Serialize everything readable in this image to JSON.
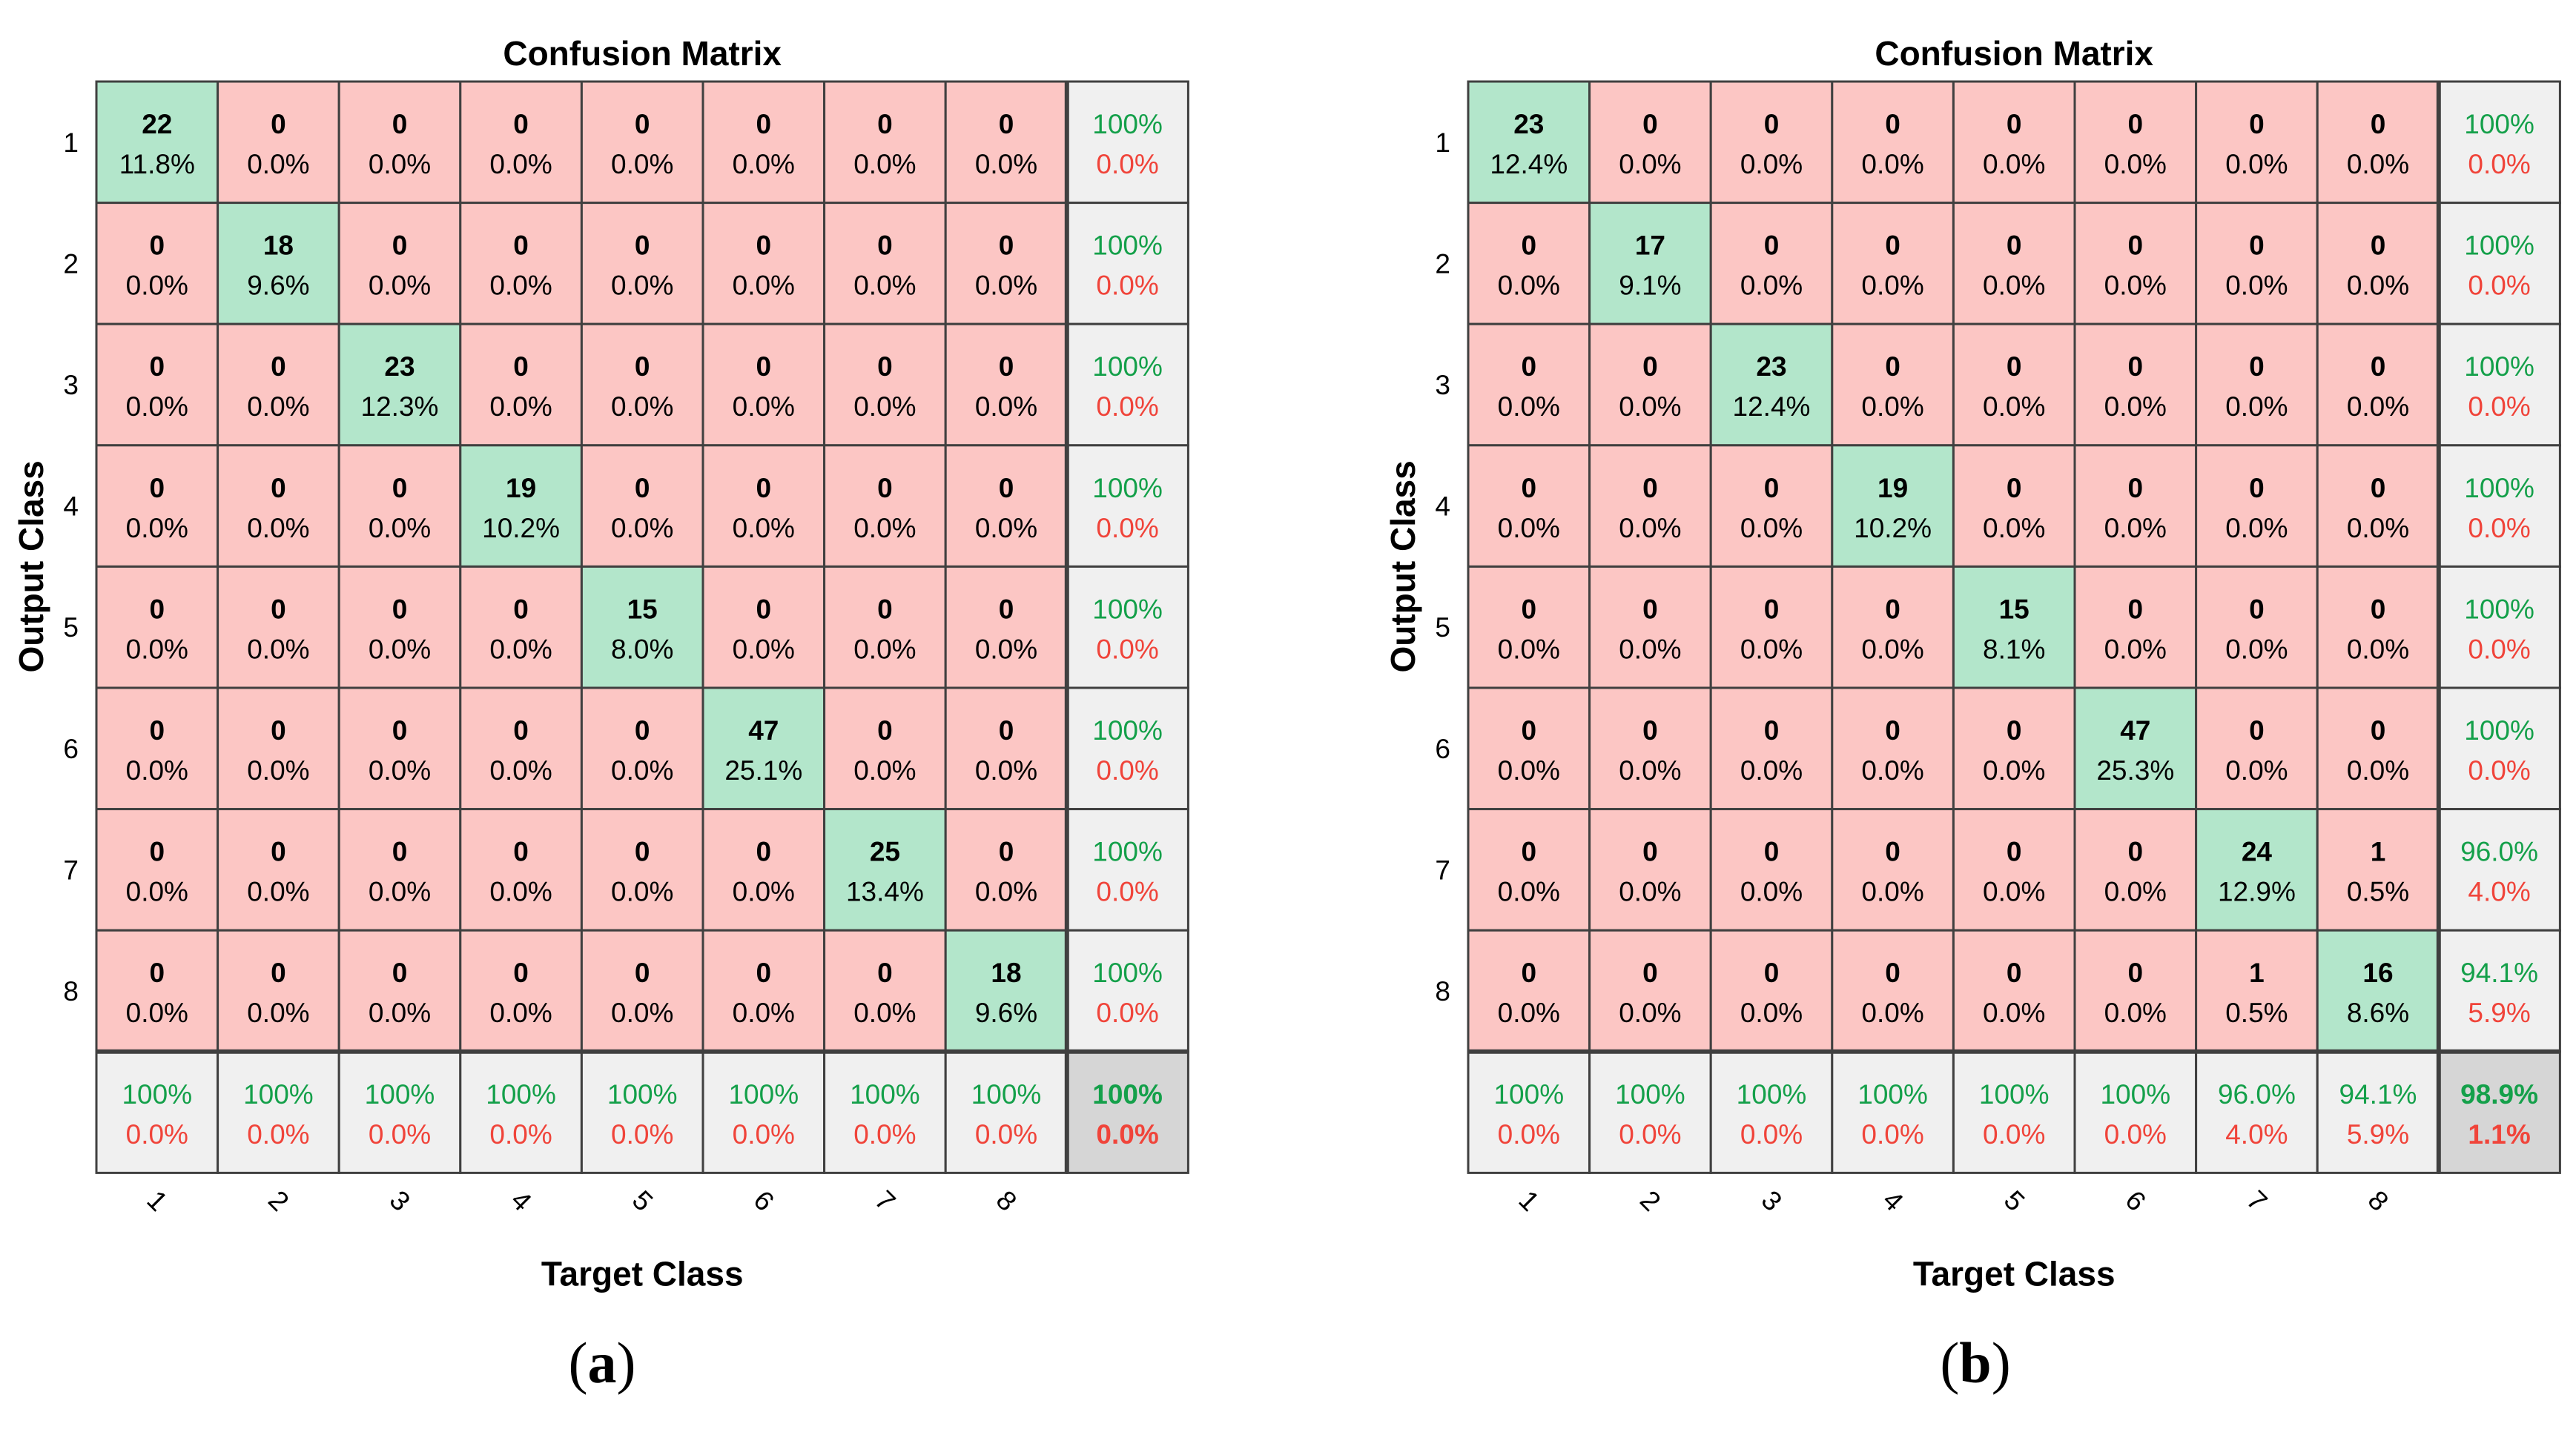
{
  "colors": {
    "diag": "#b3e6cb",
    "off": "#fcc6c4",
    "summary": "#f0f0f0",
    "corner": "#d6d6d6",
    "green_text": "#14a04a",
    "red_text": "#f0443a",
    "grid": "#404040"
  },
  "chart_data": [
    {
      "type": "heatmap",
      "panel_label": "a",
      "title": "Confusion Matrix",
      "xlabel": "Target Class",
      "ylabel": "Output Class",
      "classes": [
        "1",
        "2",
        "3",
        "4",
        "5",
        "6",
        "7",
        "8"
      ],
      "counts": [
        [
          22,
          0,
          0,
          0,
          0,
          0,
          0,
          0
        ],
        [
          0,
          18,
          0,
          0,
          0,
          0,
          0,
          0
        ],
        [
          0,
          0,
          23,
          0,
          0,
          0,
          0,
          0
        ],
        [
          0,
          0,
          0,
          19,
          0,
          0,
          0,
          0
        ],
        [
          0,
          0,
          0,
          0,
          15,
          0,
          0,
          0
        ],
        [
          0,
          0,
          0,
          0,
          0,
          47,
          0,
          0
        ],
        [
          0,
          0,
          0,
          0,
          0,
          0,
          25,
          0
        ],
        [
          0,
          0,
          0,
          0,
          0,
          0,
          0,
          18
        ]
      ],
      "percents": [
        [
          "11.8%",
          "0.0%",
          "0.0%",
          "0.0%",
          "0.0%",
          "0.0%",
          "0.0%",
          "0.0%"
        ],
        [
          "0.0%",
          "9.6%",
          "0.0%",
          "0.0%",
          "0.0%",
          "0.0%",
          "0.0%",
          "0.0%"
        ],
        [
          "0.0%",
          "0.0%",
          "12.3%",
          "0.0%",
          "0.0%",
          "0.0%",
          "0.0%",
          "0.0%"
        ],
        [
          "0.0%",
          "0.0%",
          "0.0%",
          "10.2%",
          "0.0%",
          "0.0%",
          "0.0%",
          "0.0%"
        ],
        [
          "0.0%",
          "0.0%",
          "0.0%",
          "0.0%",
          "8.0%",
          "0.0%",
          "0.0%",
          "0.0%"
        ],
        [
          "0.0%",
          "0.0%",
          "0.0%",
          "0.0%",
          "0.0%",
          "25.1%",
          "0.0%",
          "0.0%"
        ],
        [
          "0.0%",
          "0.0%",
          "0.0%",
          "0.0%",
          "0.0%",
          "0.0%",
          "13.4%",
          "0.0%"
        ],
        [
          "0.0%",
          "0.0%",
          "0.0%",
          "0.0%",
          "0.0%",
          "0.0%",
          "0.0%",
          "9.6%"
        ]
      ],
      "row_summary": [
        [
          "100%",
          "0.0%"
        ],
        [
          "100%",
          "0.0%"
        ],
        [
          "100%",
          "0.0%"
        ],
        [
          "100%",
          "0.0%"
        ],
        [
          "100%",
          "0.0%"
        ],
        [
          "100%",
          "0.0%"
        ],
        [
          "100%",
          "0.0%"
        ],
        [
          "100%",
          "0.0%"
        ]
      ],
      "col_summary": [
        [
          "100%",
          "0.0%"
        ],
        [
          "100%",
          "0.0%"
        ],
        [
          "100%",
          "0.0%"
        ],
        [
          "100%",
          "0.0%"
        ],
        [
          "100%",
          "0.0%"
        ],
        [
          "100%",
          "0.0%"
        ],
        [
          "100%",
          "0.0%"
        ],
        [
          "100%",
          "0.0%"
        ]
      ],
      "overall": [
        "100%",
        "0.0%"
      ]
    },
    {
      "type": "heatmap",
      "panel_label": "b",
      "title": "Confusion Matrix",
      "xlabel": "Target Class",
      "ylabel": "Output Class",
      "classes": [
        "1",
        "2",
        "3",
        "4",
        "5",
        "6",
        "7",
        "8"
      ],
      "counts": [
        [
          23,
          0,
          0,
          0,
          0,
          0,
          0,
          0
        ],
        [
          0,
          17,
          0,
          0,
          0,
          0,
          0,
          0
        ],
        [
          0,
          0,
          23,
          0,
          0,
          0,
          0,
          0
        ],
        [
          0,
          0,
          0,
          19,
          0,
          0,
          0,
          0
        ],
        [
          0,
          0,
          0,
          0,
          15,
          0,
          0,
          0
        ],
        [
          0,
          0,
          0,
          0,
          0,
          47,
          0,
          0
        ],
        [
          0,
          0,
          0,
          0,
          0,
          0,
          24,
          1
        ],
        [
          0,
          0,
          0,
          0,
          0,
          0,
          1,
          16
        ]
      ],
      "percents": [
        [
          "12.4%",
          "0.0%",
          "0.0%",
          "0.0%",
          "0.0%",
          "0.0%",
          "0.0%",
          "0.0%"
        ],
        [
          "0.0%",
          "9.1%",
          "0.0%",
          "0.0%",
          "0.0%",
          "0.0%",
          "0.0%",
          "0.0%"
        ],
        [
          "0.0%",
          "0.0%",
          "12.4%",
          "0.0%",
          "0.0%",
          "0.0%",
          "0.0%",
          "0.0%"
        ],
        [
          "0.0%",
          "0.0%",
          "0.0%",
          "10.2%",
          "0.0%",
          "0.0%",
          "0.0%",
          "0.0%"
        ],
        [
          "0.0%",
          "0.0%",
          "0.0%",
          "0.0%",
          "8.1%",
          "0.0%",
          "0.0%",
          "0.0%"
        ],
        [
          "0.0%",
          "0.0%",
          "0.0%",
          "0.0%",
          "0.0%",
          "25.3%",
          "0.0%",
          "0.0%"
        ],
        [
          "0.0%",
          "0.0%",
          "0.0%",
          "0.0%",
          "0.0%",
          "0.0%",
          "12.9%",
          "0.5%"
        ],
        [
          "0.0%",
          "0.0%",
          "0.0%",
          "0.0%",
          "0.0%",
          "0.0%",
          "0.5%",
          "8.6%"
        ]
      ],
      "row_summary": [
        [
          "100%",
          "0.0%"
        ],
        [
          "100%",
          "0.0%"
        ],
        [
          "100%",
          "0.0%"
        ],
        [
          "100%",
          "0.0%"
        ],
        [
          "100%",
          "0.0%"
        ],
        [
          "100%",
          "0.0%"
        ],
        [
          "96.0%",
          "4.0%"
        ],
        [
          "94.1%",
          "5.9%"
        ]
      ],
      "col_summary": [
        [
          "100%",
          "0.0%"
        ],
        [
          "100%",
          "0.0%"
        ],
        [
          "100%",
          "0.0%"
        ],
        [
          "100%",
          "0.0%"
        ],
        [
          "100%",
          "0.0%"
        ],
        [
          "100%",
          "0.0%"
        ],
        [
          "96.0%",
          "4.0%"
        ],
        [
          "94.1%",
          "5.9%"
        ]
      ],
      "overall": [
        "98.9%",
        "1.1%"
      ]
    }
  ]
}
